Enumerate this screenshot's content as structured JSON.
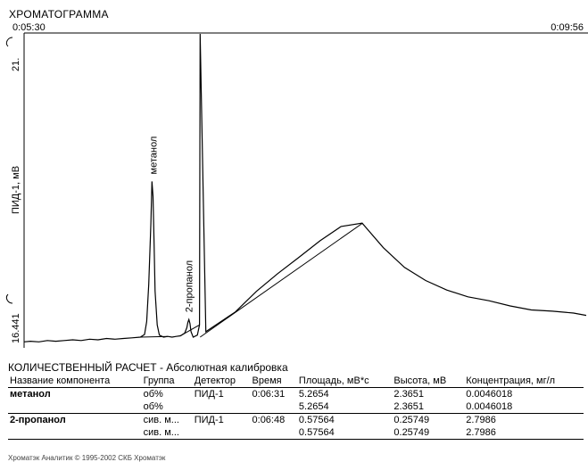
{
  "window": {
    "title": "ХРОМАТОГРАММА",
    "time_start": "0:05:30",
    "time_end": "0:09:56"
  },
  "chart_data": {
    "type": "line",
    "title": "ХРОМАТОГРАММА",
    "ylabel": "ПИД-1, мВ",
    "ytick_labels": [
      "21.",
      "16.441"
    ],
    "ylim": [
      16.441,
      21.0
    ],
    "x_range_labels": [
      "0:05:30",
      "0:09:56"
    ],
    "xlim_seconds": [
      330,
      596
    ],
    "peaks": [
      {
        "name": "метанол",
        "time": "0:06:31",
        "height": 2.3651
      },
      {
        "name": "2-пропанол",
        "time": "0:06:48",
        "height": 0.25749
      }
    ],
    "series": [
      {
        "x": [
          330,
          333,
          337,
          341,
          345,
          349,
          353,
          357,
          361,
          365,
          369,
          373,
          377,
          381,
          385,
          387,
          388,
          389,
          390,
          390.5,
          391,
          391.5,
          392,
          393,
          394,
          396,
          398,
          400,
          402,
          404,
          406,
          407,
          407.5,
          408,
          408.5,
          409,
          410,
          412,
          413,
          413.3,
          416,
          430,
          440,
          450,
          460,
          470,
          480,
          490,
          500,
          510,
          520,
          530,
          540,
          550,
          560,
          570,
          580,
          590,
          596
        ],
        "y": [
          16.45,
          16.46,
          16.45,
          16.47,
          16.46,
          16.47,
          16.48,
          16.47,
          16.49,
          16.48,
          16.5,
          16.49,
          16.5,
          16.51,
          16.52,
          16.56,
          16.75,
          17.3,
          18.2,
          18.82,
          18.6,
          17.9,
          17.2,
          16.7,
          16.55,
          16.52,
          16.53,
          16.52,
          16.53,
          16.54,
          16.58,
          16.66,
          16.74,
          16.78,
          16.72,
          16.6,
          16.52,
          16.55,
          16.7,
          21.0,
          16.6,
          16.9,
          17.2,
          17.45,
          17.7,
          17.95,
          18.15,
          18.2,
          17.85,
          17.55,
          17.35,
          17.22,
          17.12,
          17.05,
          16.98,
          16.93,
          16.9,
          16.87,
          16.85
        ]
      }
    ],
    "baselines": [
      {
        "x": [
          385,
          398
        ]
      },
      {
        "x": [
          404,
          413
        ]
      }
    ],
    "grid": false
  },
  "report": {
    "title": "КОЛИЧЕСТВЕННЫЙ РАСЧЕТ - Абсолютная калибровка",
    "columns": [
      "Название компонента",
      "Группа",
      "Детектор",
      "Время",
      "Площадь, мВ*с",
      "Высота, мВ",
      "Концентрация, мг/л"
    ],
    "rows": [
      [
        "метанол",
        "об%",
        "ПИД-1",
        "0:06:31",
        "5.2654",
        "2.3651",
        "0.0046018"
      ],
      [
        "",
        "об%",
        "",
        "",
        "5.2654",
        "2.3651",
        "0.0046018"
      ],
      [
        "2-пропанол",
        "сив. м...",
        "ПИД-1",
        "0:06:48",
        "0.57564",
        "0.25749",
        "2.7986"
      ],
      [
        "",
        "сив. м...",
        "",
        "",
        "0.57564",
        "0.25749",
        "2.7986"
      ]
    ]
  },
  "footer": "Хроматэк Аналитик © 1995-2002 СКБ Хроматэк"
}
